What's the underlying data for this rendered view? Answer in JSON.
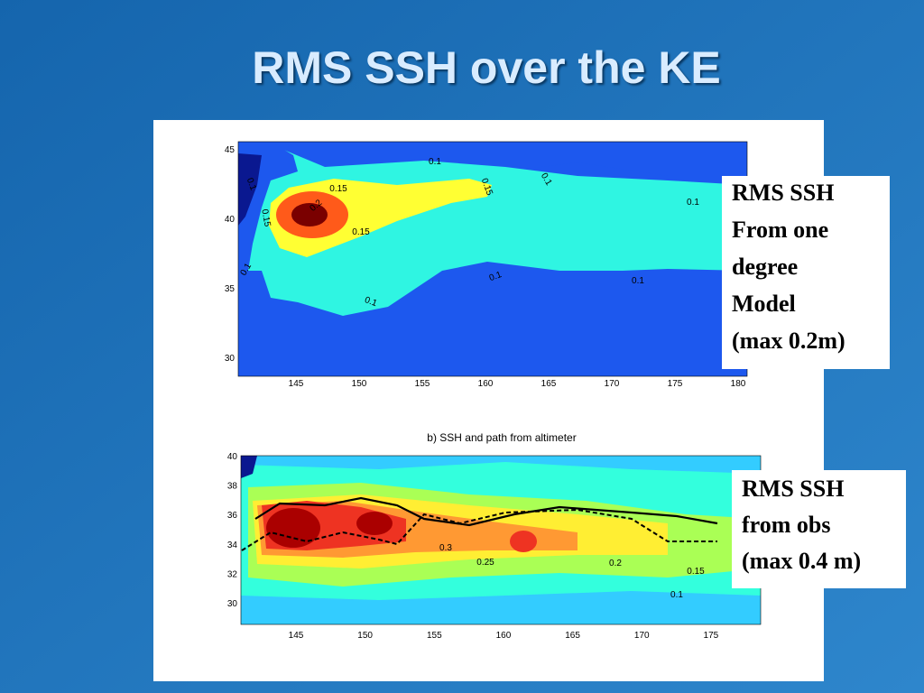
{
  "title": "RMS SSH over the KE",
  "panels": [
    {
      "subtitle": null,
      "xticks": [
        145,
        150,
        155,
        160,
        165,
        170,
        175,
        180
      ],
      "yticks": [
        45,
        40,
        35,
        30
      ],
      "contour_labels": [
        "0.15",
        "0.1",
        "0.15",
        "0.1",
        "0.1",
        "0.2",
        "0.15",
        "0.1",
        "0.1",
        "0.1",
        "0.1",
        "0.15",
        "0.1"
      ],
      "caption": [
        "RMS SSH",
        "From one",
        "degree",
        "Model",
        "(max 0.2m)"
      ]
    },
    {
      "subtitle": "b) SSH and path from altimeter",
      "xticks": [
        145,
        150,
        155,
        160,
        165,
        170,
        175
      ],
      "yticks": [
        40,
        38,
        36,
        34,
        32,
        30
      ],
      "contour_labels": [
        "0.3",
        "0.25",
        "0.2",
        "0.15",
        "0.1"
      ],
      "caption": [
        "RMS SSH",
        "from obs",
        "(max 0.4 m)"
      ]
    }
  ]
}
